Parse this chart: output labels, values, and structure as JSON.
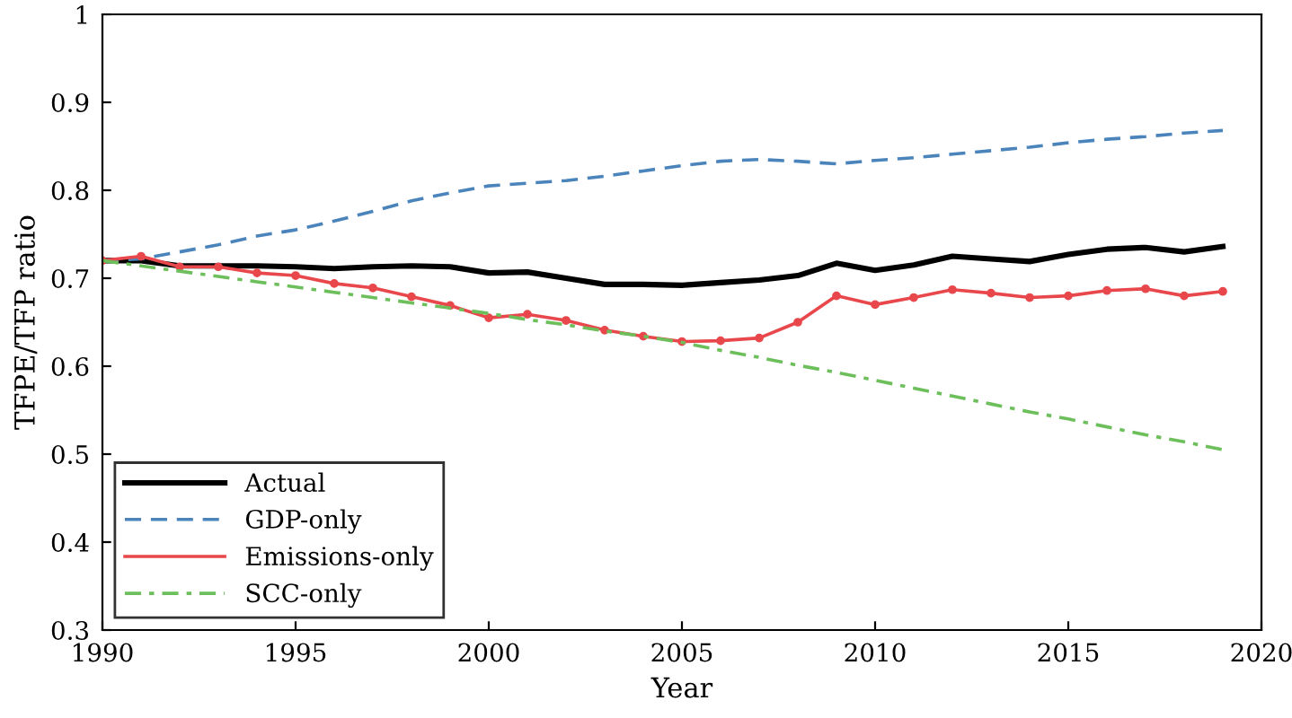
{
  "chart_data": {
    "type": "line",
    "xlabel": "Year",
    "ylabel": "TFPE/TFP ratio",
    "x": [
      1990,
      1991,
      1992,
      1993,
      1994,
      1995,
      1996,
      1997,
      1998,
      1999,
      2000,
      2001,
      2002,
      2003,
      2004,
      2005,
      2006,
      2007,
      2008,
      2009,
      2010,
      2011,
      2012,
      2013,
      2014,
      2015,
      2016,
      2017,
      2018,
      2019
    ],
    "series": [
      {
        "name": "Actual",
        "color": "#000000",
        "line_style": "solid",
        "marker": "none",
        "values": [
          0.72,
          0.72,
          0.714,
          0.714,
          0.714,
          0.713,
          0.711,
          0.713,
          0.714,
          0.713,
          0.706,
          0.707,
          0.7,
          0.693,
          0.693,
          0.692,
          0.695,
          0.698,
          0.703,
          0.717,
          0.709,
          0.715,
          0.725,
          0.722,
          0.719,
          0.727,
          0.733,
          0.735,
          0.73,
          0.736
        ]
      },
      {
        "name": "GDP-only",
        "color": "#4a84bb",
        "line_style": "dashed",
        "marker": "none",
        "values": [
          0.72,
          0.722,
          0.73,
          0.738,
          0.748,
          0.755,
          0.765,
          0.776,
          0.788,
          0.797,
          0.805,
          0.808,
          0.811,
          0.816,
          0.822,
          0.828,
          0.833,
          0.835,
          0.833,
          0.83,
          0.834,
          0.837,
          0.841,
          0.845,
          0.849,
          0.854,
          0.858,
          0.861,
          0.865,
          0.868
        ]
      },
      {
        "name": "Emissions-only",
        "color": "#e8474b",
        "line_style": "solid",
        "marker": "circle",
        "values": [
          0.72,
          0.725,
          0.713,
          0.713,
          0.706,
          0.703,
          0.694,
          0.689,
          0.679,
          0.669,
          0.655,
          0.659,
          0.652,
          0.641,
          0.634,
          0.628,
          0.629,
          0.632,
          0.65,
          0.68,
          0.67,
          0.678,
          0.687,
          0.683,
          0.678,
          0.68,
          0.686,
          0.688,
          0.68,
          0.685
        ]
      },
      {
        "name": "SCC-only",
        "color": "#6cbf5a",
        "line_style": "dashdot",
        "marker": "none",
        "values": [
          0.72,
          0.714,
          0.708,
          0.702,
          0.696,
          0.69,
          0.684,
          0.678,
          0.672,
          0.666,
          0.66,
          0.653,
          0.647,
          0.64,
          0.634,
          0.627,
          0.618,
          0.61,
          0.601,
          0.593,
          0.584,
          0.575,
          0.566,
          0.557,
          0.548,
          0.54,
          0.531,
          0.522,
          0.514,
          0.505
        ]
      }
    ],
    "xlim": [
      1990,
      2020
    ],
    "xticks": [
      1990,
      1995,
      2000,
      2005,
      2010,
      2015,
      2020
    ],
    "ylim": [
      0.3,
      1
    ],
    "yticks": [
      0.3,
      0.4,
      0.5,
      0.6,
      0.7,
      0.8,
      0.9,
      1
    ],
    "grid": false,
    "legend": "bottom left"
  }
}
